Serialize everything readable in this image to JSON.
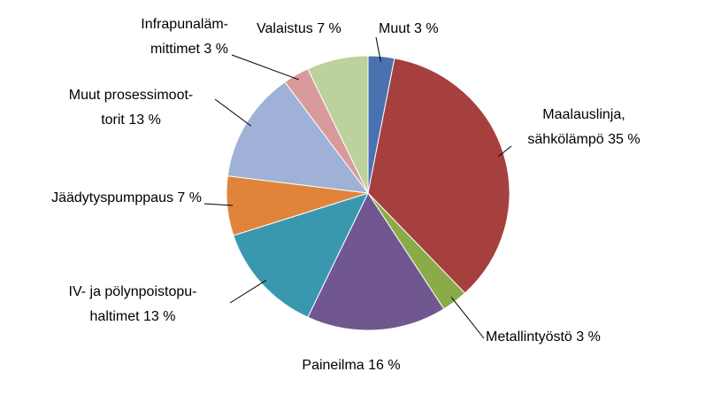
{
  "chart_data": {
    "type": "pie",
    "categories": [
      [
        "Muut"
      ],
      [
        "Maalauslinja,",
        "sähkölämpö"
      ],
      [
        "Metallintyöstö"
      ],
      [
        "Paineilma"
      ],
      [
        "IV- ja pölynpoistopu-",
        "haltimet"
      ],
      [
        "Jäädytyspumppaus"
      ],
      [
        "Muut prosessimoot-",
        "torit "
      ],
      [
        "Infrapunaläm-",
        "mittimet"
      ],
      [
        "Valaistus"
      ]
    ],
    "values": [
      3,
      35,
      3,
      16,
      13,
      7,
      13,
      3,
      7
    ],
    "value_labels": [
      "3 %",
      "35 %",
      "3 %",
      "16 %",
      "13 %",
      "7 %",
      "13 %",
      "3 %",
      "7 %"
    ],
    "colors": [
      "#4a72b0",
      "#a5403e",
      "#8aab48",
      "#71578f",
      "#3a97b0",
      "#e0843c",
      "#9fb1d6",
      "#d89a9a",
      "#bcd19b"
    ]
  }
}
